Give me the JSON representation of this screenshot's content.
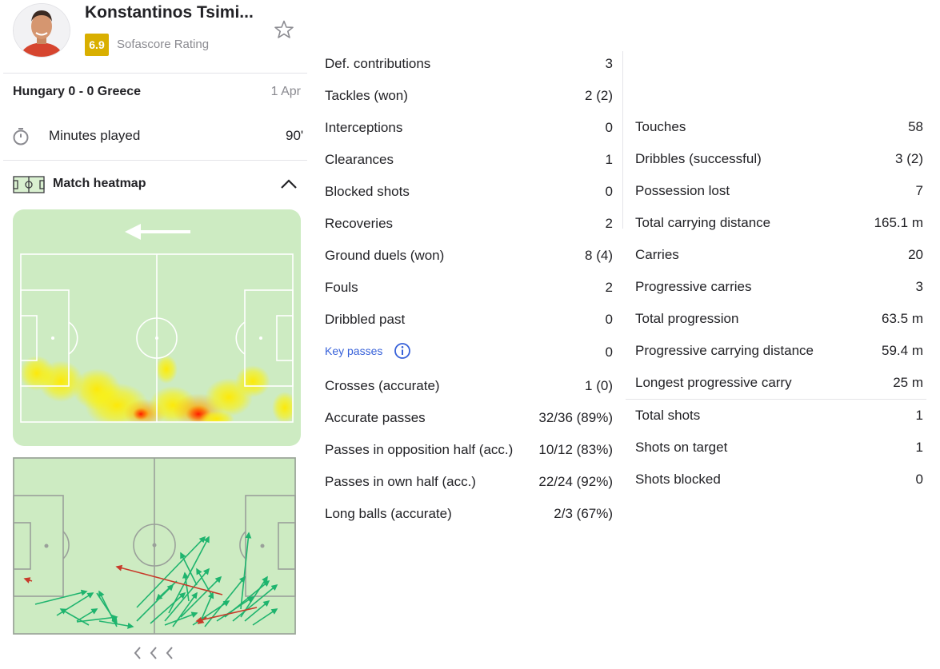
{
  "player": {
    "name": "Konstantinos Tsimi...",
    "rating": "6.9",
    "rating_label": "Sofascore Rating"
  },
  "match": {
    "title": "Hungary 0 - 0 Greece",
    "date": "1 Apr",
    "minutes_label": "Minutes played",
    "minutes_value": "90'"
  },
  "heatmap": {
    "title": "Match heatmap",
    "attack_direction": "left"
  },
  "stats_left": [
    {
      "label": "Def. contributions",
      "value": "3"
    },
    {
      "label": "Tackles (won)",
      "value": "2 (2)"
    },
    {
      "label": "Interceptions",
      "value": "0"
    },
    {
      "label": "Clearances",
      "value": "1"
    },
    {
      "label": "Blocked shots",
      "value": "0"
    },
    {
      "label": "Recoveries",
      "value": "2"
    },
    {
      "label": "Ground duels (won)",
      "value": "8 (4)"
    },
    {
      "label": "Fouls",
      "value": "2"
    },
    {
      "label": "Dribbled past",
      "value": "0"
    },
    {
      "label": "Key passes",
      "value": "0"
    },
    {
      "label": "Crosses (accurate)",
      "value": "1 (0)"
    },
    {
      "label": "Accurate passes",
      "value": "32/36 (89%)"
    },
    {
      "label": "Passes in opposition half (acc.)",
      "value": "10/12 (83%)"
    },
    {
      "label": "Passes in own half (acc.)",
      "value": "22/24 (92%)"
    },
    {
      "label": "Long balls (accurate)",
      "value": "2/3 (67%)"
    }
  ],
  "stats_right": [
    {
      "label": "Touches",
      "value": "58"
    },
    {
      "label": "Dribbles (successful)",
      "value": "3 (2)"
    },
    {
      "label": "Possession lost",
      "value": "7"
    },
    {
      "label": "Total carrying distance",
      "value": "165.1 m"
    },
    {
      "label": "Carries",
      "value": "20"
    },
    {
      "label": "Progressive carries",
      "value": "3"
    },
    {
      "label": "Total progression",
      "value": "63.5 m"
    },
    {
      "label": "Progressive carrying distance",
      "value": "59.4 m"
    },
    {
      "label": "Longest progressive carry",
      "value": "25 m"
    },
    {
      "label": "Total shots",
      "value": "1"
    },
    {
      "label": "Shots on target",
      "value": "1"
    },
    {
      "label": "Shots blocked",
      "value": "0"
    }
  ],
  "colors": {
    "rating_badge": "#d9af00",
    "link": "#3761d9",
    "pitch": "#cdebc2",
    "pass_success": "#1fb46e",
    "pass_fail": "#c83a2a"
  },
  "icons": [
    "star-icon",
    "stopwatch-icon",
    "pitch-icon",
    "chevron-up-icon",
    "info-icon",
    "chevron-left-icon",
    "arrow-left-icon"
  ]
}
